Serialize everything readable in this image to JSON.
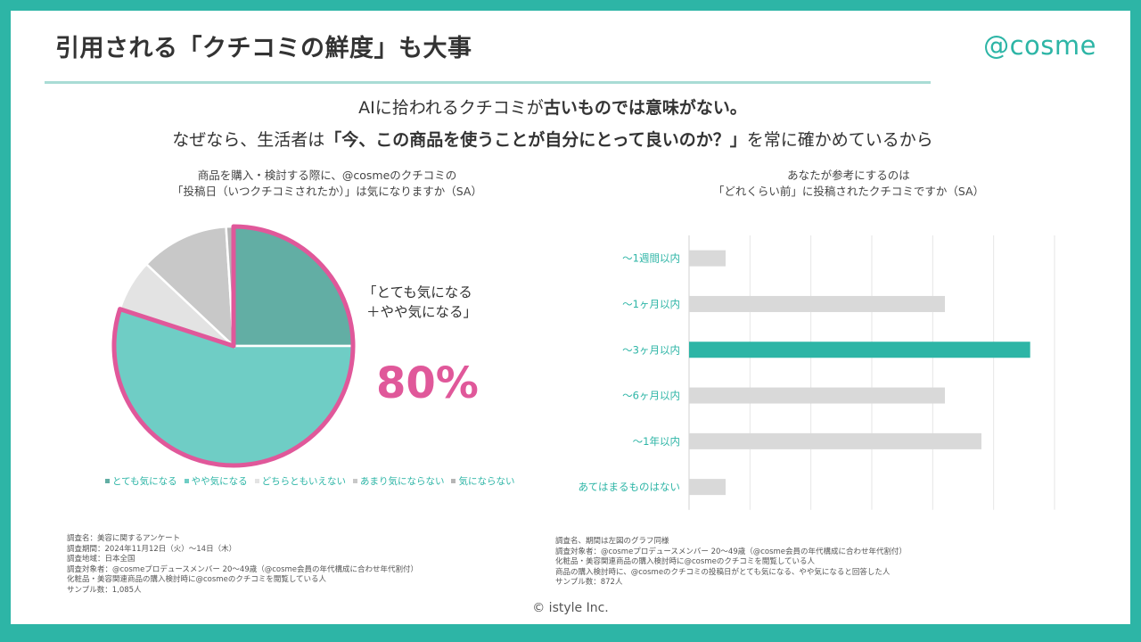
{
  "header": {
    "title": "引用される「クチコミの鮮度」も大事",
    "logo": "@cosme"
  },
  "headline": {
    "line1_normal": "AIに拾われるクチコミが",
    "line1_bold": "古いものでは意味がない。",
    "line2_normal_start": "なぜなら、生活者は",
    "line2_bold": "「今、この商品を使うことが自分にとって良いのか？」",
    "line2_normal_end": "を常に確かめているから"
  },
  "pie_chart": {
    "title_line1": "商品を購入・検討する際に、@cosmeのクチコミの",
    "title_line2": "「投稿日（いつクチコミされたか）」は気になりますか（SA）",
    "callout_line1": "「とても気になる",
    "callout_line2": "＋やや気になる」",
    "callout_value": "80%"
  },
  "bar_chart": {
    "title_line1": "あなたが参考にするのは",
    "title_line2": "「どれくらい前」に投稿されたクチコミですか（SA）"
  },
  "chart_data": [
    {
      "type": "pie",
      "title": "商品を購入・検討する際に、@cosmeのクチコミの「投稿日（いつクチコミされたか）」は気になりますか（SA）",
      "categories": [
        "とても気になる",
        "やや気になる",
        "どちらともいえない",
        "あまり気にならない",
        "気にならない"
      ],
      "values": [
        25,
        55,
        7,
        12,
        1
      ],
      "colors": [
        "#62aea4",
        "#6fcdc5",
        "#e3e3e3",
        "#c8c8c8",
        "#b5b5b5"
      ],
      "highlight_color": "#e0589a",
      "legend_position": "bottom",
      "annotation": "80%"
    },
    {
      "type": "bar",
      "orientation": "horizontal",
      "title": "あなたが参考にするのは「どれくらい前」に投稿されたクチコミですか（SA）",
      "categories": [
        "～1週間以内",
        "～1ヶ月以内",
        "～3ヶ月以内",
        "～6ヶ月以内",
        "～1年以内",
        "あてはまるものはない"
      ],
      "values": [
        3,
        21,
        28,
        21,
        24,
        3
      ],
      "xlim": [
        0,
        30
      ],
      "xticks": [
        "0%",
        "5%",
        "10%",
        "15%",
        "20%",
        "25%",
        "30%"
      ],
      "highlight_index": 2,
      "bar_color": "#d9d9d9",
      "highlight_color": "#2db5a6",
      "grid": true
    }
  ],
  "notes_left": [
    "調査名：美容に関するアンケート",
    "調査期間：2024年11月12日（火）～14日（木）",
    "調査地域：日本全国",
    "調査対象者：@cosmeプロデュースメンバー 20～49歳（@cosme会員の年代構成に合わせ年代割付）",
    "化粧品・美容関連商品の購入検討時に@cosmeのクチコミを閲覧している人",
    "サンプル数：1,085人"
  ],
  "notes_right": [
    "調査名、期間は左図のグラフ同様",
    "調査対象者：@cosmeプロデュースメンバー 20～49歳（@cosme会員の年代構成に合わせ年代割付）",
    "化粧品・美容関連商品の購入検討時に@cosmeのクチコミを閲覧している人",
    "商品の購入検討時に、@cosmeのクチコミの投稿日がとても気になる、やや気になると回答した人",
    "サンプル数：872人"
  ],
  "footer": {
    "copyright": "© istyle Inc."
  }
}
